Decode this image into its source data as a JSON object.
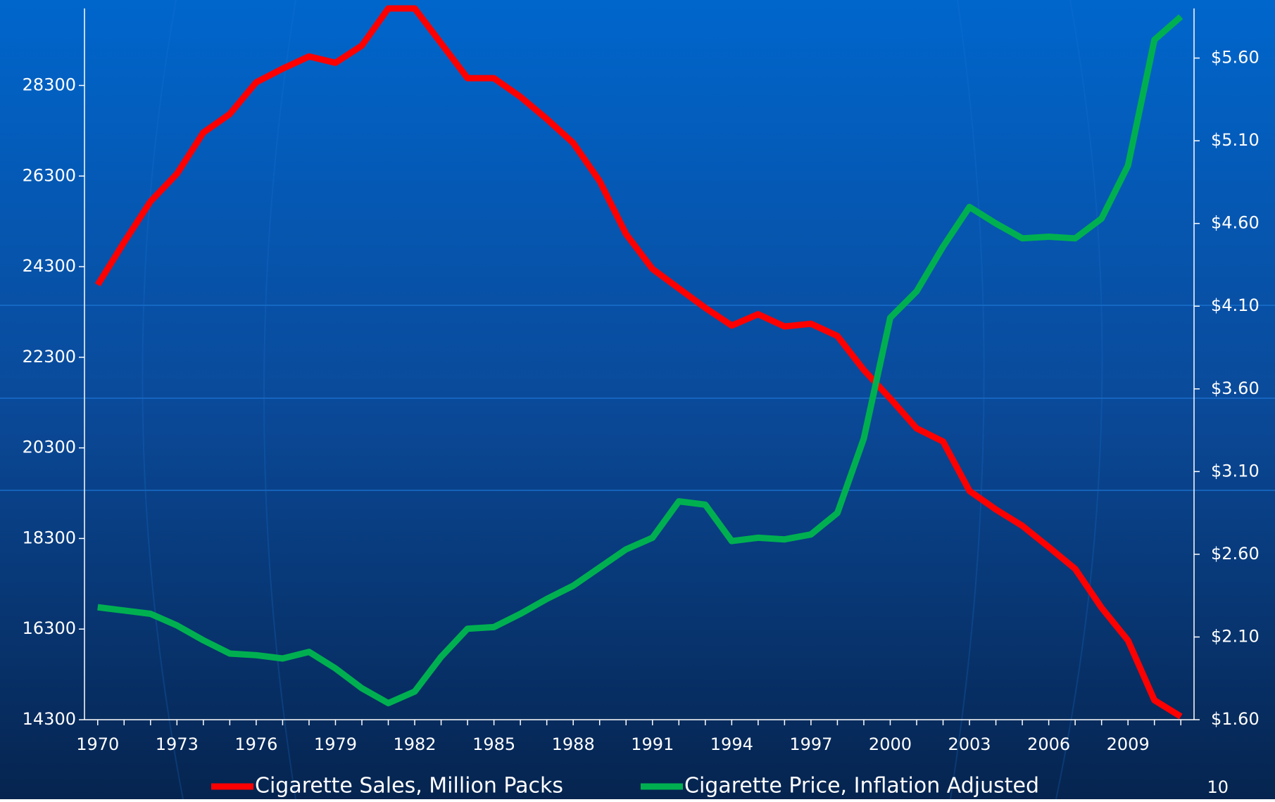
{
  "chart_data": {
    "type": "line",
    "x": [
      1970,
      1971,
      1972,
      1973,
      1974,
      1975,
      1976,
      1977,
      1978,
      1979,
      1980,
      1981,
      1982,
      1983,
      1984,
      1985,
      1986,
      1987,
      1988,
      1989,
      1990,
      1991,
      1992,
      1993,
      1994,
      1995,
      1996,
      1997,
      1998,
      1999,
      2000,
      2001,
      2002,
      2003,
      2004,
      2005,
      2006,
      2007,
      2008,
      2009,
      2010,
      2011
    ],
    "xlim": [
      1969.5,
      2011.5
    ],
    "xticks": [
      1970,
      1973,
      1976,
      1979,
      1982,
      1985,
      1988,
      1991,
      1994,
      1997,
      2000,
      2003,
      2006,
      2009
    ],
    "ylim": [
      14300,
      30000
    ],
    "yticks": [
      14300,
      16300,
      18300,
      20300,
      22300,
      24300,
      26300,
      28300
    ],
    "y2lim": [
      1.6,
      5.9
    ],
    "y2ticks": [
      {
        "value": 1.6,
        "label": "$1.60"
      },
      {
        "value": 2.1,
        "label": "$2.10"
      },
      {
        "value": 2.6,
        "label": "$2.60"
      },
      {
        "value": 3.1,
        "label": "$3.10"
      },
      {
        "value": 3.6,
        "label": "$3.60"
      },
      {
        "value": 4.1,
        "label": "$4.10"
      },
      {
        "value": 4.6,
        "label": "$4.60"
      },
      {
        "value": 5.1,
        "label": "$5.10"
      },
      {
        "value": 5.6,
        "label": "$5.60"
      }
    ],
    "series": [
      {
        "name": "Cigarette Sales, Million Packs",
        "color": "#ff0000",
        "values": [
          23900,
          24840,
          25740,
          26350,
          27260,
          27670,
          28370,
          28670,
          28940,
          28800,
          29180,
          30000,
          30000,
          29230,
          28460,
          28460,
          28050,
          27560,
          27030,
          26190,
          25020,
          24250,
          23820,
          23390,
          23000,
          23250,
          22980,
          23040,
          22770,
          22020,
          21390,
          20730,
          20440,
          19350,
          18940,
          18580,
          18110,
          17630,
          16770,
          16050,
          14730,
          14370
        ]
      },
      {
        "name": "Cigarette Price, Inflation Adjusted",
        "color": "#00b050",
        "axis": "y2",
        "values": [
          2.28,
          2.26,
          2.24,
          2.17,
          2.08,
          2.0,
          1.99,
          1.97,
          2.01,
          1.91,
          1.79,
          1.7,
          1.77,
          1.98,
          2.15,
          2.16,
          2.24,
          2.33,
          2.41,
          2.52,
          2.63,
          2.7,
          2.92,
          2.9,
          2.68,
          2.7,
          2.69,
          2.72,
          2.85,
          3.3,
          4.03,
          4.19,
          4.46,
          4.7,
          4.6,
          4.51,
          4.52,
          4.51,
          4.63,
          4.95,
          5.71,
          5.85
        ]
      }
    ],
    "page_number": "10"
  }
}
